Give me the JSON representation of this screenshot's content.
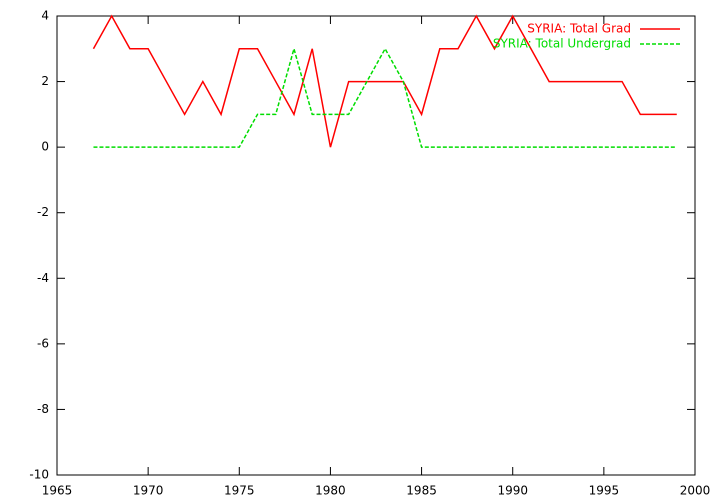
{
  "chart_data": {
    "type": "line",
    "x": [
      1967,
      1968,
      1969,
      1970,
      1971,
      1972,
      1973,
      1974,
      1975,
      1976,
      1977,
      1978,
      1979,
      1980,
      1981,
      1982,
      1983,
      1984,
      1985,
      1986,
      1987,
      1988,
      1989,
      1990,
      1991,
      1992,
      1993,
      1994,
      1995,
      1996,
      1997,
      1998,
      1999
    ],
    "series": [
      {
        "name": "SYRIA: Total Grad",
        "color": "#ff0000",
        "dash": false,
        "values": [
          3,
          4,
          3,
          3,
          2,
          1,
          2,
          1,
          3,
          3,
          2,
          1,
          3,
          0,
          2,
          2,
          2,
          2,
          1,
          3,
          3,
          4,
          3,
          4,
          3,
          2,
          2,
          2,
          2,
          2,
          1,
          1,
          1
        ]
      },
      {
        "name": "SYRIA: Total Undergrad",
        "color": "#00dd00",
        "dash": true,
        "values": [
          0,
          0,
          0,
          0,
          0,
          0,
          0,
          0,
          0,
          1,
          1,
          3,
          1,
          1,
          1,
          2,
          3,
          2,
          0,
          0,
          0,
          0,
          0,
          0,
          0,
          0,
          0,
          0,
          0,
          0,
          0,
          0,
          0
        ]
      }
    ],
    "xlim": [
      1965,
      2000
    ],
    "xticks": [
      1965,
      1970,
      1975,
      1980,
      1985,
      1990,
      1995,
      2000
    ],
    "ylim": [
      -10,
      4
    ],
    "yticks": [
      -10,
      -8,
      -6,
      -4,
      -2,
      0,
      2,
      4
    ],
    "legend": "top-right"
  }
}
